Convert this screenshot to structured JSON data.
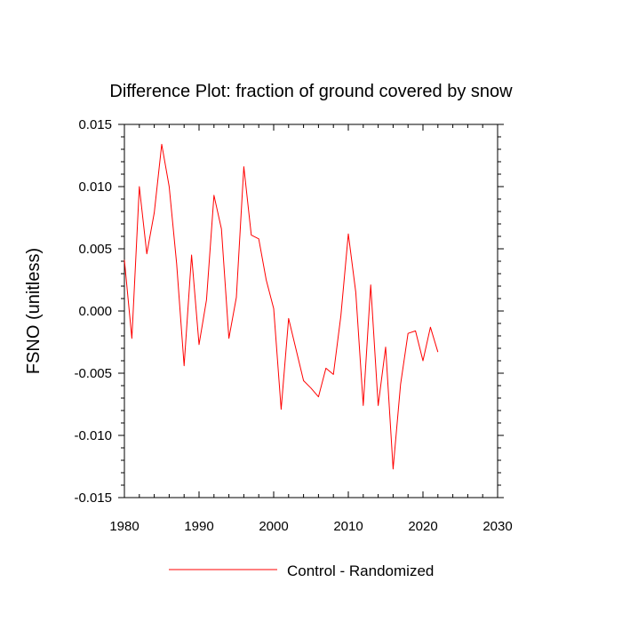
{
  "chart_data": {
    "type": "line",
    "title": "Difference Plot: fraction of ground covered by snow",
    "xlabel": "",
    "ylabel": "FSNO  (unitless)",
    "xlim": [
      1980,
      2030
    ],
    "ylim": [
      -0.015,
      0.015
    ],
    "x_ticks": [
      1980,
      1990,
      2000,
      2010,
      2020,
      2030
    ],
    "x_tick_labels": [
      "1980",
      "1990",
      "2000",
      "2010",
      "2020",
      "2030"
    ],
    "y_ticks": [
      0.015,
      0.01,
      0.005,
      0.0,
      -0.005,
      -0.01,
      -0.015
    ],
    "y_tick_labels": [
      "0.015",
      "0.010",
      "0.005",
      "0.000",
      "-0.005",
      "-0.010",
      "-0.015"
    ],
    "grid": false,
    "legend_position": "bottom",
    "series": [
      {
        "name": "Control - Randomized",
        "color": "#ff0000",
        "x": [
          1980,
          1981,
          1982,
          1983,
          1984,
          1985,
          1986,
          1987,
          1988,
          1989,
          1990,
          1991,
          1992,
          1993,
          1994,
          1995,
          1996,
          1997,
          1998,
          1999,
          2000,
          2001,
          2002,
          2003,
          2004,
          2005,
          2006,
          2007,
          2008,
          2009,
          2010,
          2011,
          2012,
          2013,
          2014,
          2015,
          2016,
          2017,
          2018,
          2019,
          2020,
          2021,
          2022
        ],
        "values": [
          0.0041,
          -0.0022,
          0.01,
          0.0046,
          0.0079,
          0.0134,
          0.01,
          0.0038,
          -0.0044,
          0.0045,
          -0.0027,
          0.0009,
          0.0093,
          0.0066,
          -0.0022,
          0.0011,
          0.0116,
          0.0061,
          0.0058,
          0.0025,
          0.0002,
          -0.0079,
          -0.0006,
          -0.0031,
          -0.0056,
          -0.0062,
          -0.0069,
          -0.0046,
          -0.0051,
          -0.0004,
          0.0062,
          0.0015,
          -0.0076,
          0.0021,
          -0.0076,
          -0.0029,
          -0.0127,
          -0.0059,
          -0.0018,
          -0.0016,
          -0.004,
          -0.0013,
          -0.0033
        ]
      }
    ]
  }
}
